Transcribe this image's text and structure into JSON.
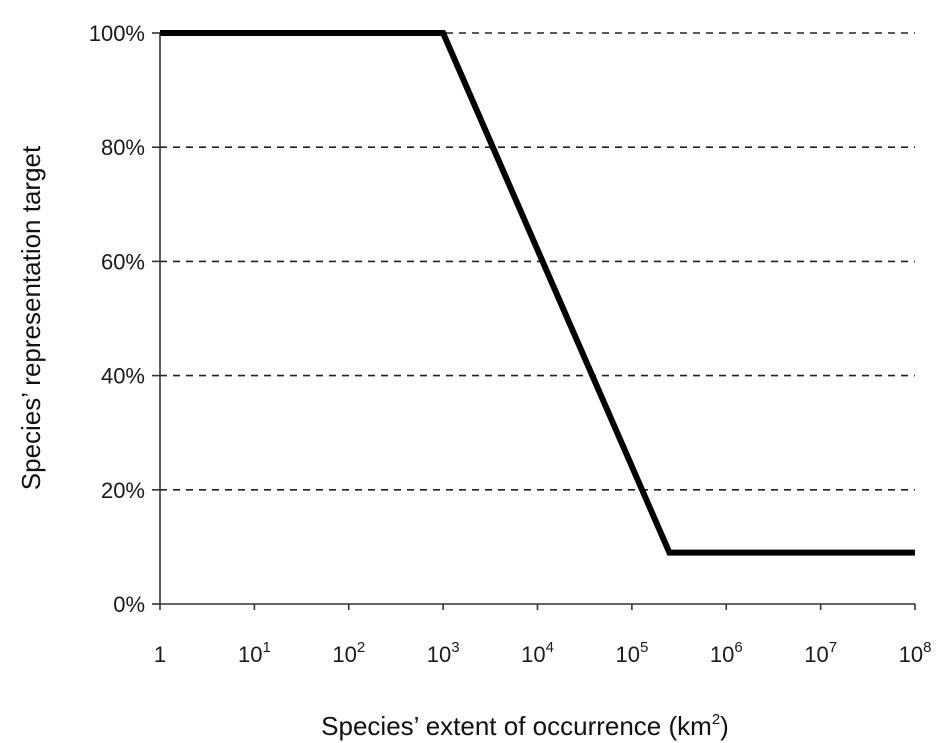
{
  "chart_data": {
    "type": "line",
    "title": "",
    "xlabel": "Species’ extent of occurrence (km",
    "xlabel_sup": "2",
    "xlabel_suffix": ")",
    "ylabel": "Species’ representation target",
    "x_scale": "log",
    "xlim": [
      1,
      100000000
    ],
    "ylim": [
      0,
      100
    ],
    "x_ticks": [
      {
        "value": 1,
        "base": "1",
        "exp": ""
      },
      {
        "value": 10,
        "base": "10",
        "exp": "1"
      },
      {
        "value": 100,
        "base": "10",
        "exp": "2"
      },
      {
        "value": 1000,
        "base": "10",
        "exp": "3"
      },
      {
        "value": 10000,
        "base": "10",
        "exp": "4"
      },
      {
        "value": 100000,
        "base": "10",
        "exp": "5"
      },
      {
        "value": 1000000,
        "base": "10",
        "exp": "6"
      },
      {
        "value": 10000000,
        "base": "10",
        "exp": "7"
      },
      {
        "value": 100000000,
        "base": "10",
        "exp": "8"
      }
    ],
    "y_ticks": [
      {
        "value": 0,
        "label": "0%"
      },
      {
        "value": 20,
        "label": "20%"
      },
      {
        "value": 40,
        "label": "40%"
      },
      {
        "value": 60,
        "label": "60%"
      },
      {
        "value": 80,
        "label": "80%"
      },
      {
        "value": 100,
        "label": "100%"
      }
    ],
    "grid": "horizontal dashed",
    "series": [
      {
        "points": [
          {
            "x": 1,
            "y": 100
          },
          {
            "x": 1000,
            "y": 100
          },
          {
            "x": 250000,
            "y": 9
          },
          {
            "x": 100000000,
            "y": 9
          }
        ]
      }
    ]
  }
}
